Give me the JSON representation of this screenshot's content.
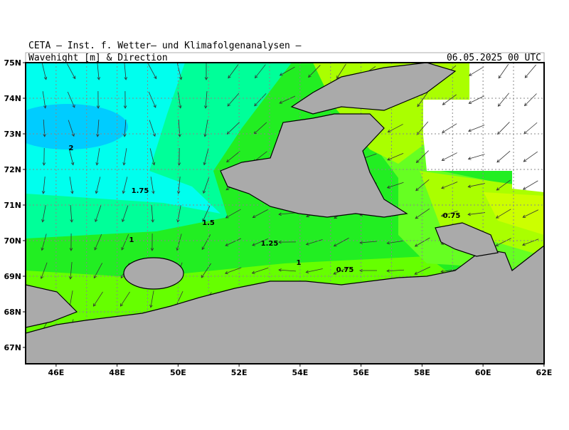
{
  "header": {
    "title": "CETA – Inst. f. Wetter– und Klimafolgenanalysen –",
    "subtitle": "Wavehight [m] & Direction",
    "date": "06.05.2025 00 UTC"
  },
  "axes": {
    "lat_labels": [
      "75N",
      "74N",
      "73N",
      "72N",
      "71N",
      "70N",
      "69N",
      "68N",
      "67N"
    ],
    "lon_labels": [
      "46E",
      "48E",
      "50E",
      "52E",
      "54E",
      "56E",
      "58E",
      "60E",
      "62E"
    ]
  },
  "contour_labels": [
    "2",
    "1.75",
    "1.5",
    "1.25",
    "1",
    "1",
    "0.75",
    "0.75"
  ]
}
